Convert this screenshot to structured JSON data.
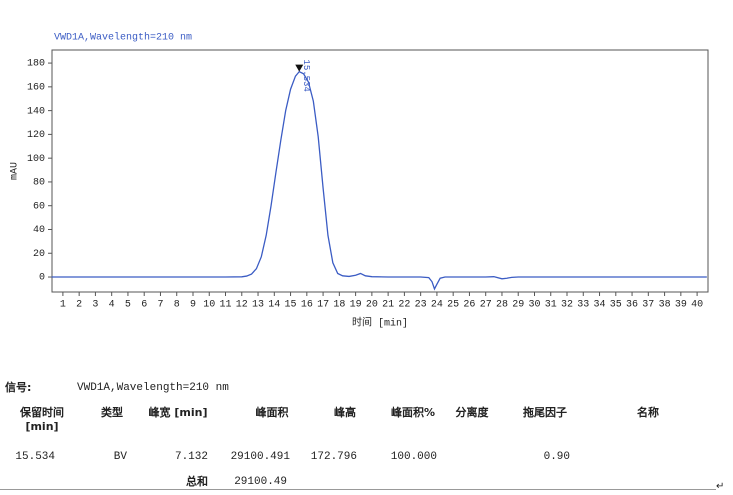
{
  "chart_data": {
    "type": "line",
    "title": "VWD1A,Wavelength=210 nm",
    "x_label": "时间 [min]",
    "y_label": "mAU",
    "color": "#3b5cc4",
    "x": [
      0.3,
      2,
      4,
      6,
      8,
      10,
      11,
      12,
      12.3,
      12.6,
      12.9,
      13.2,
      13.5,
      13.8,
      14.1,
      14.4,
      14.7,
      15.0,
      15.3,
      15.534,
      15.8,
      16.1,
      16.4,
      16.7,
      17.0,
      17.3,
      17.6,
      17.9,
      18.2,
      18.6,
      19.0,
      19.3,
      19.6,
      20,
      21,
      22,
      23,
      23.5,
      23.7,
      23.85,
      24.0,
      24.2,
      24.5,
      25,
      26,
      27,
      27.5,
      28.0,
      28.3,
      28.6,
      29,
      30,
      32,
      34,
      36,
      38,
      40,
      40.6
    ],
    "values": [
      0,
      0,
      0,
      0,
      0,
      0,
      0,
      0.2,
      0.8,
      2.5,
      7,
      17,
      35,
      60,
      88,
      115,
      140,
      158,
      169,
      172.796,
      171,
      164,
      148,
      118,
      75,
      35,
      12,
      3,
      1,
      0.5,
      1.5,
      3,
      1,
      0.3,
      0,
      0,
      0,
      -0.5,
      -4,
      -10,
      -6,
      -1,
      0,
      0,
      0,
      0,
      0.3,
      -1.5,
      -1,
      -0.3,
      0,
      0,
      0,
      0,
      0,
      0,
      0,
      0
    ],
    "peak_index": 19,
    "annotations": [
      {
        "text": "15.534"
      }
    ],
    "xlim": [
      0.33,
      40.67
    ],
    "ylim": [
      -12.6,
      191
    ],
    "xticks": [
      1,
      2,
      3,
      4,
      5,
      6,
      7,
      8,
      9,
      10,
      11,
      12,
      13,
      14,
      15,
      16,
      17,
      18,
      19,
      20,
      21,
      22,
      23,
      24,
      25,
      26,
      27,
      28,
      29,
      30,
      31,
      32,
      33,
      34,
      35,
      36,
      37,
      38,
      39,
      40
    ],
    "yticks": [
      0,
      20,
      40,
      60,
      80,
      100,
      120,
      140,
      160,
      180
    ],
    "grid": false
  },
  "report": {
    "signal_label": "信号:",
    "signal": "VWD1A,Wavelength=210 nm",
    "headers": [
      "保留时间 [min]",
      "类型",
      "峰宽 [min]",
      "峰面积",
      "峰高",
      "峰面积%",
      "分离度",
      "拖尾因子",
      "名称"
    ],
    "row": [
      "15.534",
      "BV",
      "7.132",
      "29100.491",
      "172.796",
      "100.000",
      null,
      "0.90",
      null
    ],
    "total_label": "总和",
    "total_area": "29100.49"
  }
}
